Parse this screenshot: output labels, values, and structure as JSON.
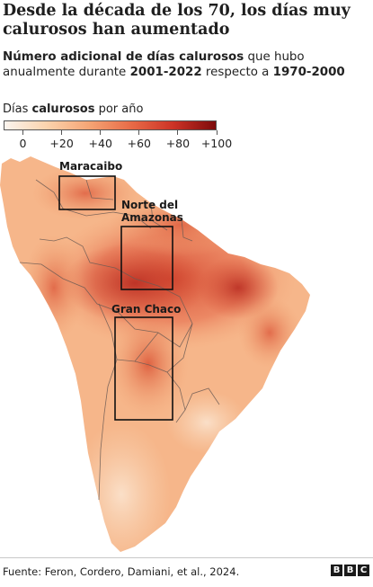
{
  "title": "Desde la década de los 70, los días muy calurosos han aumentado",
  "subtitle": {
    "part1_bold": "Número adicional de días calurosos",
    "part2": " que hubo anualmente durante ",
    "part3_bold": "2001-2022",
    "part4": " respecto a ",
    "part5_bold": "1970-2000"
  },
  "legend": {
    "title_prefix": "Días ",
    "title_bold": "calurosos",
    "title_suffix": " por año",
    "ticks": [
      {
        "label": "0",
        "value": 0
      },
      {
        "label": "+20",
        "value": 20
      },
      {
        "label": "+40",
        "value": 40
      },
      {
        "label": "+60",
        "value": 60
      },
      {
        "label": "+80",
        "value": 80
      },
      {
        "label": "+100",
        "value": 100
      }
    ],
    "range": [
      -10,
      100
    ],
    "colors": [
      "#fbf4ee",
      "#fbd3ad",
      "#f5a575",
      "#e86b47",
      "#cc3226",
      "#7d0b0b"
    ]
  },
  "regions": {
    "maracaibo": "Maracaibo",
    "amazonas_line1": "Norte del",
    "amazonas_line2": "Amazonas",
    "chaco": "Gran Chaco"
  },
  "source": "Fuente: Feron, Cordero, Damiani, et al., 2024.",
  "brand": [
    "B",
    "B",
    "C"
  ]
}
